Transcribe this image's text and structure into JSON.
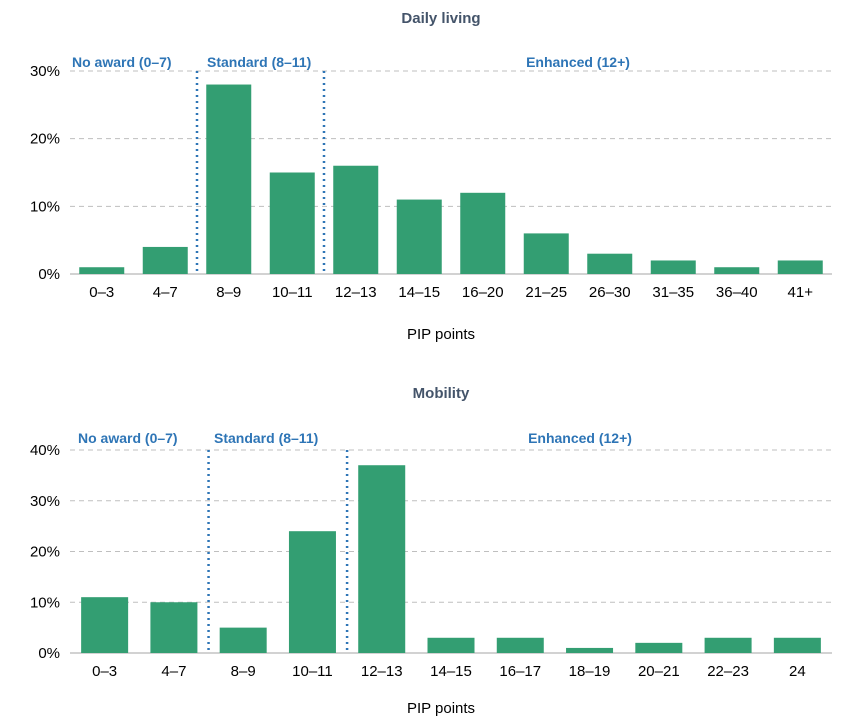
{
  "chart_data": [
    {
      "type": "bar",
      "title": "Daily living",
      "xlabel": "PIP points",
      "ylabel": "",
      "ylim": [
        0,
        30
      ],
      "yticks": [
        "0%",
        "10%",
        "20%",
        "30%"
      ],
      "grid": true,
      "categories": [
        "0–3",
        "4–7",
        "8–9",
        "10–11",
        "12–13",
        "14–15",
        "16–20",
        "21–25",
        "26–30",
        "31–35",
        "36–40",
        "41+"
      ],
      "values": [
        1,
        4,
        28,
        15,
        16,
        11,
        12,
        6,
        3,
        2,
        1,
        2
      ],
      "bar_color": "#339e72",
      "regions": [
        {
          "label": "No award (0–7)"
        },
        {
          "label": "Standard (8–11)"
        },
        {
          "label": "Enhanced (12+)"
        }
      ]
    },
    {
      "type": "bar",
      "title": "Mobility",
      "xlabel": "PIP points",
      "ylabel": "",
      "ylim": [
        0,
        40
      ],
      "yticks": [
        "0%",
        "10%",
        "20%",
        "30%",
        "40%"
      ],
      "grid": true,
      "categories": [
        "0–3",
        "4–7",
        "8–9",
        "10–11",
        "12–13",
        "14–15",
        "16–17",
        "18–19",
        "20–21",
        "22–23",
        "24"
      ],
      "values": [
        11,
        10,
        5,
        24,
        37,
        3,
        3,
        1,
        2,
        3,
        3
      ],
      "bar_color": "#339e72",
      "regions": [
        {
          "label": "No award (0–7)"
        },
        {
          "label": "Standard (8–11)"
        },
        {
          "label": "Enhanced (12+)"
        }
      ]
    }
  ]
}
